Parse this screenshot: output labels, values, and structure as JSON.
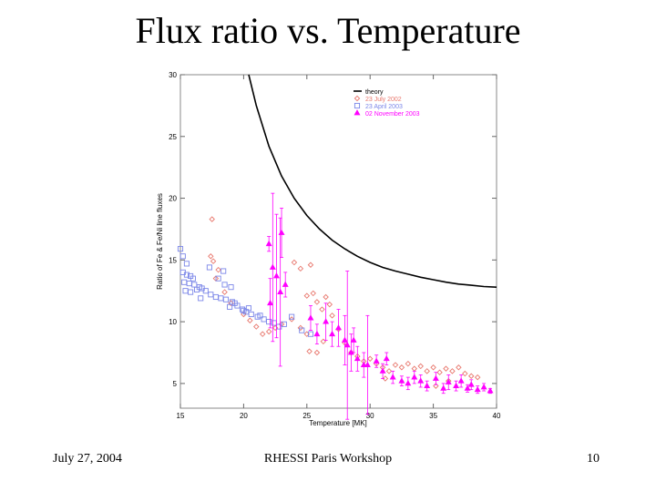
{
  "slide": {
    "title": "Flux ratio vs. Temperature",
    "footer_date": "July 27, 2004",
    "footer_event": "RHESSI Paris Workshop",
    "page_number": "10"
  },
  "chart_data": {
    "type": "scatter",
    "xlabel": "Temperature [MK]",
    "ylabel": "Ratio of Fe & Fe/Ni line fluxes",
    "xlim": [
      15,
      40
    ],
    "ylim": [
      3,
      30
    ],
    "x_ticks": [
      15,
      20,
      25,
      30,
      35,
      40
    ],
    "y_ticks": [
      5,
      10,
      15,
      20,
      25,
      30
    ],
    "legend_position": "top-right",
    "grid": false,
    "series": [
      {
        "name": "theory",
        "kind": "line",
        "color": "#000000",
        "points": [
          [
            20.4,
            30
          ],
          [
            21,
            27.5
          ],
          [
            22,
            24.2
          ],
          [
            23,
            21.8
          ],
          [
            24,
            20.0
          ],
          [
            25,
            18.6
          ],
          [
            26,
            17.5
          ],
          [
            27,
            16.6
          ],
          [
            28,
            15.9
          ],
          [
            29,
            15.3
          ],
          [
            30,
            14.8
          ],
          [
            31,
            14.4
          ],
          [
            32,
            14.1
          ],
          [
            33,
            13.85
          ],
          [
            34,
            13.6
          ],
          [
            35,
            13.4
          ],
          [
            36,
            13.2
          ],
          [
            37,
            13.05
          ],
          [
            38,
            12.95
          ],
          [
            39,
            12.85
          ],
          [
            40,
            12.8
          ]
        ]
      },
      {
        "name": "23 July 2002",
        "kind": "markers",
        "marker": "diamond",
        "color": "#e8786e",
        "points": [
          [
            17.5,
            18.3
          ],
          [
            17.4,
            15.3
          ],
          [
            17.6,
            14.9
          ],
          [
            18,
            14.2
          ],
          [
            17.8,
            13.5
          ],
          [
            18.5,
            12.4
          ],
          [
            19,
            11.5
          ],
          [
            20,
            10.6
          ],
          [
            20.5,
            10.1
          ],
          [
            21,
            9.6
          ],
          [
            21.5,
            9.0
          ],
          [
            22,
            9.2
          ],
          [
            22.5,
            9.5
          ],
          [
            23,
            9.8
          ],
          [
            23.8,
            10.2
          ],
          [
            24,
            14.8
          ],
          [
            24.5,
            14.3
          ],
          [
            25.3,
            14.6
          ],
          [
            25,
            12.1
          ],
          [
            25.5,
            12.3
          ],
          [
            25.8,
            11.6
          ],
          [
            26.2,
            11.0
          ],
          [
            26.5,
            12.0
          ],
          [
            26.8,
            11.4
          ],
          [
            27,
            10.5
          ],
          [
            24.5,
            9.5
          ],
          [
            25,
            9.0
          ],
          [
            25.2,
            7.6
          ],
          [
            25.8,
            7.5
          ],
          [
            26.3,
            8.4
          ],
          [
            27.5,
            9.4
          ],
          [
            28,
            8.3
          ],
          [
            28.5,
            7.5
          ],
          [
            29,
            7.2
          ],
          [
            29.5,
            6.8
          ],
          [
            30,
            7.0
          ],
          [
            30.5,
            6.6
          ],
          [
            31,
            6.3
          ],
          [
            31.5,
            6.0
          ],
          [
            32,
            6.5
          ],
          [
            32.5,
            6.3
          ],
          [
            33,
            6.6
          ],
          [
            33.5,
            6.2
          ],
          [
            34,
            6.4
          ],
          [
            34.5,
            6.0
          ],
          [
            35,
            6.3
          ],
          [
            35.5,
            5.9
          ],
          [
            36,
            6.2
          ],
          [
            36.5,
            6.0
          ],
          [
            37,
            6.3
          ],
          [
            37.5,
            5.8
          ],
          [
            38,
            5.6
          ],
          [
            38.5,
            5.5
          ],
          [
            36.2,
            5.2
          ],
          [
            35.2,
            4.8
          ],
          [
            31.2,
            5.4
          ]
        ]
      },
      {
        "name": "23 April 2003",
        "kind": "markers",
        "marker": "square",
        "color": "#7b86e8",
        "points": [
          [
            15,
            15.9
          ],
          [
            15.2,
            15.3
          ],
          [
            15.5,
            14.7
          ],
          [
            15.2,
            14.0
          ],
          [
            15.5,
            13.8
          ],
          [
            15.8,
            13.7
          ],
          [
            16,
            13.5
          ],
          [
            15.3,
            13.2
          ],
          [
            15.7,
            13.1
          ],
          [
            16.1,
            13.0
          ],
          [
            16.5,
            12.8
          ],
          [
            15.4,
            12.5
          ],
          [
            15.8,
            12.4
          ],
          [
            16.3,
            12.6
          ],
          [
            16.7,
            12.7
          ],
          [
            17,
            12.5
          ],
          [
            17.4,
            12.2
          ],
          [
            17.8,
            12.0
          ],
          [
            18.2,
            11.9
          ],
          [
            18.6,
            11.8
          ],
          [
            18,
            13.5
          ],
          [
            18.5,
            13.0
          ],
          [
            19,
            12.8
          ],
          [
            17.3,
            14.4
          ],
          [
            18.4,
            14.1
          ],
          [
            19.1,
            11.6
          ],
          [
            19.5,
            11.3
          ],
          [
            19.9,
            11.0
          ],
          [
            20.2,
            10.8
          ],
          [
            20.6,
            10.6
          ],
          [
            21.1,
            10.4
          ],
          [
            21.6,
            10.2
          ],
          [
            22,
            10.0
          ],
          [
            18.9,
            11.2
          ],
          [
            19.3,
            11.5
          ],
          [
            20.4,
            11.1
          ],
          [
            21.3,
            10.5
          ],
          [
            16.6,
            11.9
          ],
          [
            20,
            10.9
          ],
          [
            22.4,
            9.9
          ],
          [
            23.2,
            9.8
          ],
          [
            23.8,
            10.4
          ],
          [
            24.6,
            9.3
          ],
          [
            25.3,
            9.0
          ],
          [
            22.8,
            9.6
          ]
        ]
      },
      {
        "name": "02 November 2003",
        "kind": "markers_errorbars",
        "marker": "triangle",
        "color": "#ff00ff",
        "points": [
          [
            22,
            16.3,
            0.6
          ],
          [
            22.3,
            14.4,
            6.0
          ],
          [
            22.6,
            13.7,
            5.0
          ],
          [
            22.9,
            12.4,
            6.0
          ],
          [
            23,
            17.2,
            2.0
          ],
          [
            22.1,
            11.5,
            2.0
          ],
          [
            23.3,
            13.0,
            1.0
          ],
          [
            25.3,
            10.3,
            1.0
          ],
          [
            25.8,
            9.0,
            0.8
          ],
          [
            26.5,
            10.0,
            1.5
          ],
          [
            27,
            9.0,
            1.0
          ],
          [
            27.5,
            9.5,
            1.5
          ],
          [
            28,
            8.5,
            2.0
          ],
          [
            28.5,
            7.5,
            1.5
          ],
          [
            28.7,
            8.5,
            1.0
          ],
          [
            28.2,
            8.1,
            6.0
          ],
          [
            29,
            7.0,
            1.0
          ],
          [
            29.5,
            6.5,
            1.0
          ],
          [
            29.8,
            6.5,
            4.0
          ],
          [
            30.5,
            6.8,
            0.5
          ],
          [
            31,
            6.0,
            0.6
          ],
          [
            31.3,
            7.0,
            0.5
          ],
          [
            31.8,
            5.5,
            0.5
          ],
          [
            32.5,
            5.2,
            0.4
          ],
          [
            33,
            5.0,
            0.5
          ],
          [
            33.5,
            5.5,
            0.5
          ],
          [
            34,
            5.2,
            0.5
          ],
          [
            34.5,
            4.8,
            0.4
          ],
          [
            35.2,
            5.4,
            0.5
          ],
          [
            35.8,
            4.6,
            0.4
          ],
          [
            36.2,
            5.1,
            0.6
          ],
          [
            36.8,
            4.8,
            0.4
          ],
          [
            37.2,
            5.2,
            0.5
          ],
          [
            37.7,
            4.6,
            0.3
          ],
          [
            38,
            4.9,
            0.4
          ],
          [
            38.5,
            4.5,
            0.3
          ],
          [
            39,
            4.7,
            0.3
          ],
          [
            39.5,
            4.4,
            0.2
          ]
        ]
      }
    ]
  }
}
